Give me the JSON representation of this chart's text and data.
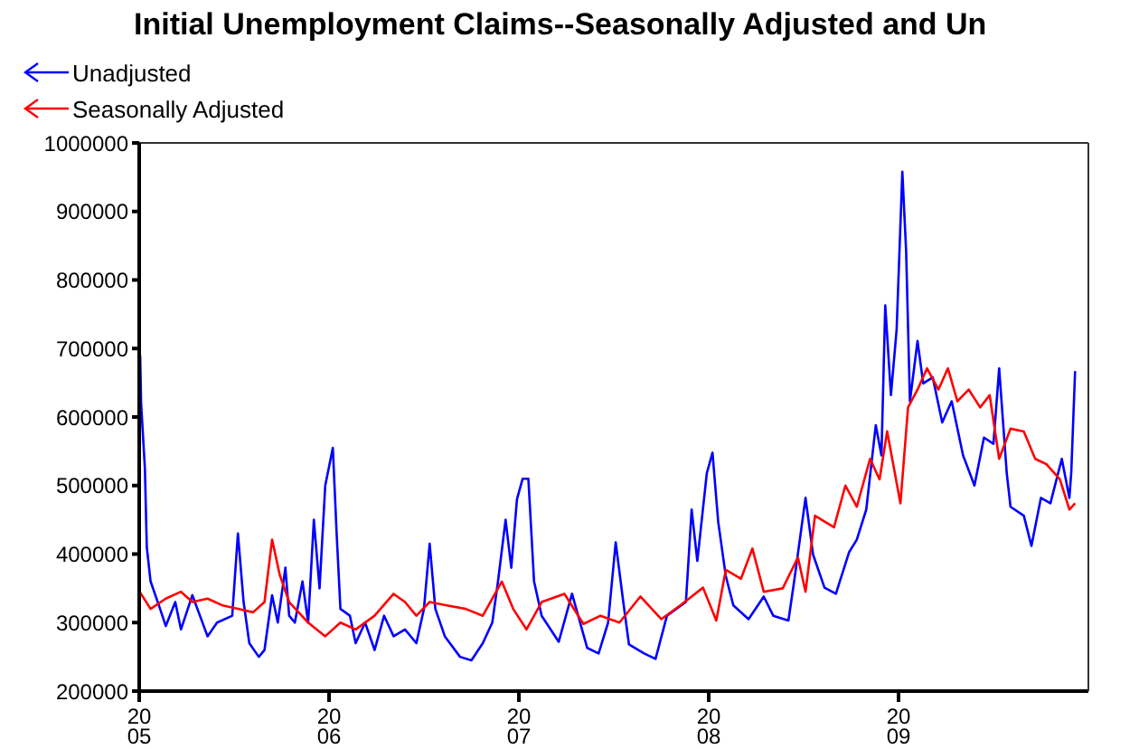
{
  "chart_data": {
    "type": "line",
    "title": "Initial Unemployment Claims--Seasonally Adjusted and Un",
    "legend": "top left",
    "xlim": [
      2005,
      2010
    ],
    "xticks": [
      2005,
      2006,
      2007,
      2008,
      2009
    ],
    "ylim": [
      200000,
      1000000
    ],
    "yticks": [
      200000,
      300000,
      400000,
      500000,
      600000,
      700000,
      800000,
      900000,
      1000000
    ],
    "series": [
      {
        "name": "Unadjusted",
        "color": "#0000ff",
        "x": [
          2005.005,
          2005.01,
          2005.03,
          2005.04,
          2005.06,
          2005.11,
          2005.14,
          2005.19,
          2005.22,
          2005.28,
          2005.36,
          2005.41,
          2005.49,
          2005.52,
          2005.55,
          2005.58,
          2005.63,
          2005.66,
          2005.7,
          2005.73,
          2005.77,
          2005.79,
          2005.82,
          2005.86,
          2005.89,
          2005.92,
          2005.95,
          2005.98,
          2006.02,
          2006.04,
          2006.06,
          2006.11,
          2006.14,
          2006.19,
          2006.24,
          2006.29,
          2006.34,
          2006.4,
          2006.46,
          2006.5,
          2006.53,
          2006.56,
          2006.61,
          2006.69,
          2006.75,
          2006.81,
          2006.86,
          2006.89,
          2006.93,
          2006.96,
          2006.99,
          2007.02,
          2007.05,
          2007.08,
          2007.12,
          2007.21,
          2007.28,
          2007.36,
          2007.42,
          2007.47,
          2007.51,
          2007.55,
          2007.58,
          2007.66,
          2007.72,
          2007.78,
          2007.88,
          2007.91,
          2007.94,
          2007.99,
          2008.02,
          2008.05,
          2008.09,
          2008.13,
          2008.21,
          2008.29,
          2008.34,
          2008.42,
          2008.45,
          2008.51,
          2008.55,
          2008.61,
          2008.67,
          2008.74,
          2008.78,
          2008.83,
          2008.88,
          2008.91,
          2008.93,
          2008.96,
          2008.99,
          2009.02,
          2009.04,
          2009.06,
          2009.1,
          2009.13,
          2009.18,
          2009.23,
          2009.28,
          2009.34,
          2009.4,
          2009.45,
          2009.5,
          2009.53,
          2009.57,
          2009.59,
          2009.66,
          2009.7,
          2009.75,
          2009.8,
          2009.86,
          2009.9,
          2009.91,
          2009.93
        ],
        "values": [
          690000,
          620000,
          525000,
          410000,
          360000,
          320000,
          295000,
          330000,
          290000,
          340000,
          280000,
          300000,
          310000,
          430000,
          330000,
          270000,
          250000,
          260000,
          340000,
          300000,
          380000,
          310000,
          300000,
          360000,
          300000,
          450000,
          350000,
          500000,
          555000,
          430000,
          320000,
          310000,
          270000,
          300000,
          260000,
          310000,
          280000,
          290000,
          270000,
          320000,
          415000,
          320000,
          280000,
          250000,
          245000,
          270000,
          300000,
          360000,
          450000,
          380000,
          480000,
          510000,
          510000,
          360000,
          310000,
          272000,
          342000,
          263000,
          255000,
          300000,
          417000,
          330000,
          268000,
          255000,
          247000,
          310000,
          330000,
          465000,
          390000,
          518000,
          548000,
          447000,
          368000,
          325000,
          305000,
          338000,
          310000,
          303000,
          360000,
          482000,
          399000,
          351000,
          342000,
          403000,
          421000,
          465000,
          588000,
          544000,
          763000,
          632000,
          728000,
          958000,
          842000,
          623000,
          711000,
          649000,
          658000,
          592000,
          623000,
          544000,
          500000,
          570000,
          561000,
          671000,
          518000,
          469000,
          456000,
          412000,
          482000,
          474000,
          539000,
          482000,
          520000,
          667000
        ]
      },
      {
        "name": "Seasonally Adjusted",
        "color": "#ff0000",
        "x": [
          2005,
          2005.06,
          2005.14,
          2005.22,
          2005.28,
          2005.36,
          2005.44,
          2005.52,
          2005.6,
          2005.66,
          2005.7,
          2005.74,
          2005.79,
          2005.89,
          2005.98,
          2006.06,
          2006.14,
          2006.24,
          2006.34,
          2006.4,
          2006.46,
          2006.53,
          2006.62,
          2006.72,
          2006.81,
          2006.91,
          2006.97,
          2007.04,
          2007.12,
          2007.24,
          2007.34,
          2007.43,
          2007.53,
          2007.64,
          2007.75,
          2007.85,
          2007.97,
          2008.04,
          2008.09,
          2008.17,
          2008.23,
          2008.29,
          2008.39,
          2008.47,
          2008.51,
          2008.56,
          2008.66,
          2008.72,
          2008.78,
          2008.85,
          2008.9,
          2008.94,
          2009.01,
          2009.05,
          2009.1,
          2009.15,
          2009.21,
          2009.26,
          2009.31,
          2009.37,
          2009.43,
          2009.48,
          2009.53,
          2009.59,
          2009.66,
          2009.72,
          2009.78,
          2009.85,
          2009.9,
          2009.93
        ],
        "values": [
          346000,
          320000,
          335000,
          345000,
          330000,
          335000,
          325000,
          320000,
          315000,
          330000,
          421000,
          370000,
          330000,
          300000,
          280000,
          300000,
          290000,
          310000,
          342000,
          330000,
          310000,
          330000,
          325000,
          320000,
          310000,
          360000,
          320000,
          290000,
          330000,
          342000,
          298000,
          310000,
          300000,
          338000,
          305000,
          325000,
          351000,
          303000,
          377000,
          364000,
          408000,
          345000,
          350000,
          395000,
          345000,
          456000,
          439000,
          500000,
          469000,
          539000,
          509000,
          579000,
          474000,
          614000,
          640000,
          671000,
          640000,
          671000,
          623000,
          640000,
          614000,
          632000,
          539000,
          583000,
          579000,
          539000,
          531000,
          509000,
          465000,
          474000
        ]
      }
    ]
  }
}
